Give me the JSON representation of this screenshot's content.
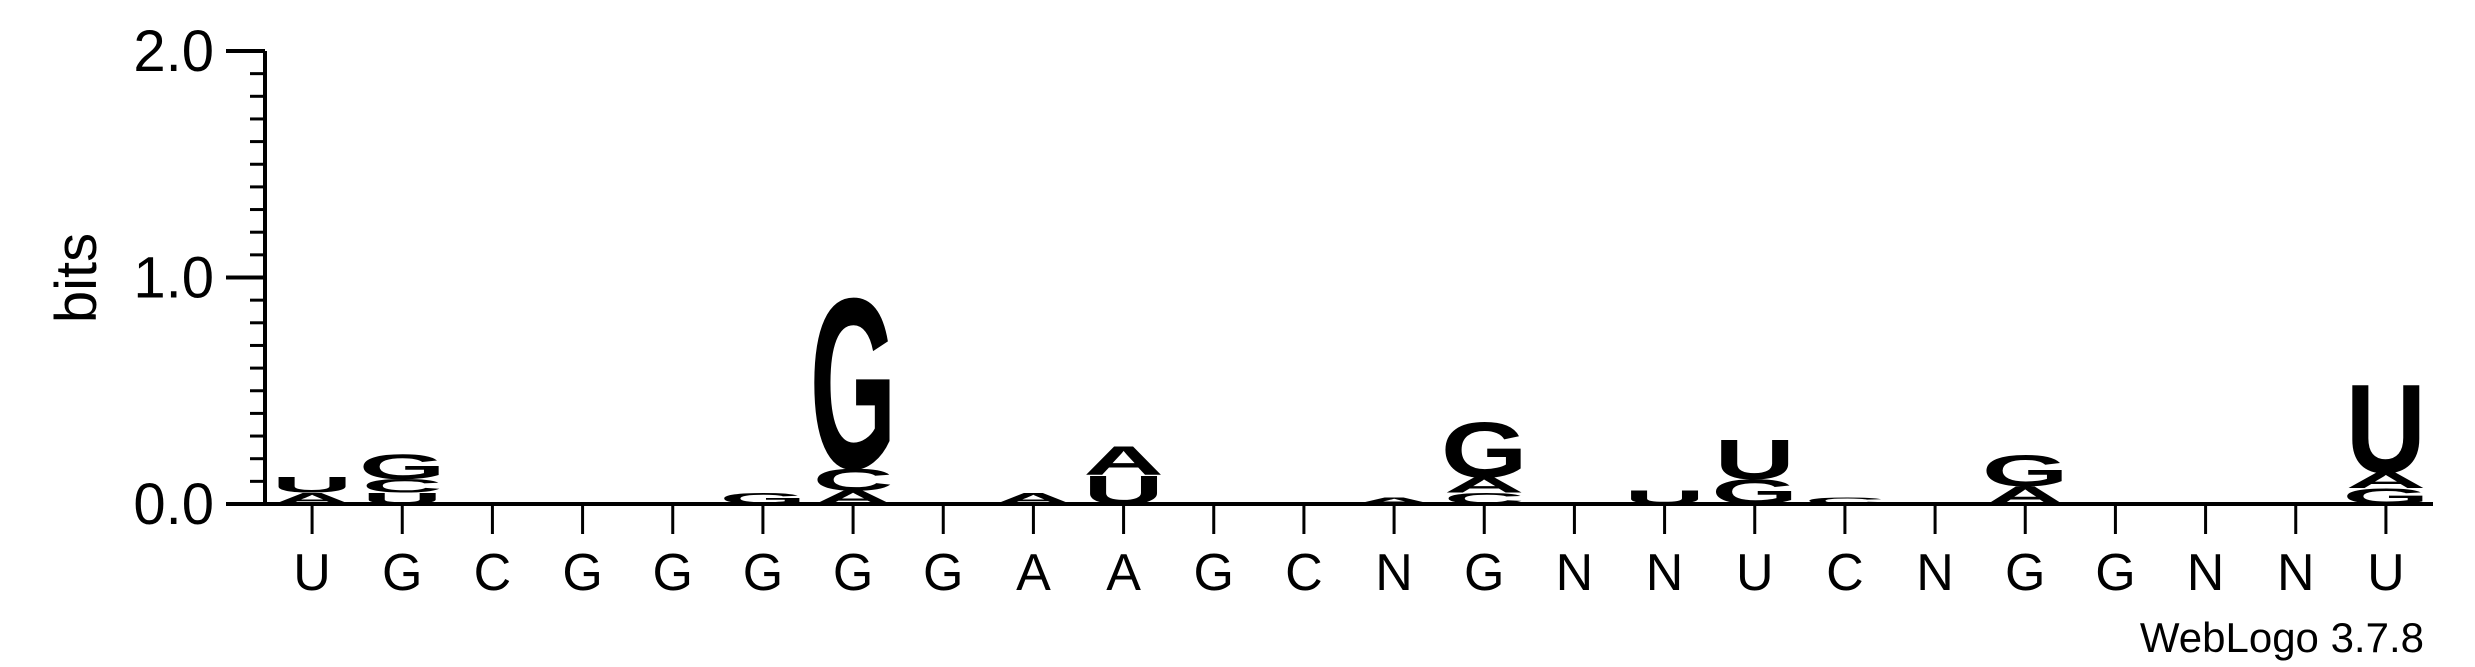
{
  "chart": {
    "ylabel": "bits",
    "credit": "WebLogo 3.7.8"
  },
  "colors": {
    "A": "#f7941d",
    "U": "#f7941d",
    "G": "#0000ff",
    "C": "#0000ff",
    "axis": "#000000"
  },
  "chart_data": {
    "type": "bar",
    "xlabel": "",
    "ylabel": "bits",
    "ylim": [
      0,
      2.0
    ],
    "yticks": [
      "0.0",
      "1.0",
      "2.0"
    ],
    "categories": [
      "U",
      "G",
      "C",
      "G",
      "G",
      "G",
      "G",
      "G",
      "A",
      "A",
      "G",
      "C",
      "N",
      "G",
      "N",
      "N",
      "U",
      "C",
      "N",
      "G",
      "G",
      "N",
      "N",
      "U"
    ],
    "stacks": [
      [
        [
          "A",
          0.05
        ],
        [
          "U",
          0.07
        ]
      ],
      [
        [
          "U",
          0.05
        ],
        [
          "C",
          0.06
        ],
        [
          "G",
          0.11
        ]
      ],
      [],
      [],
      [],
      [
        [
          "G",
          0.05
        ]
      ],
      [
        [
          "A",
          0.06
        ],
        [
          "C",
          0.1
        ],
        [
          "G",
          0.77
        ]
      ],
      [],
      [
        [
          "A",
          0.05
        ]
      ],
      [
        [
          "U",
          0.13
        ],
        [
          "A",
          0.13
        ]
      ],
      [],
      [],
      [
        [
          "A",
          0.03
        ]
      ],
      [
        [
          "C",
          0.05
        ],
        [
          "A",
          0.07
        ],
        [
          "G",
          0.25
        ]
      ],
      [],
      [
        [
          "U",
          0.06
        ]
      ],
      [
        [
          "G",
          0.11
        ],
        [
          "U",
          0.18
        ]
      ],
      [
        [
          "C",
          0.03
        ]
      ],
      [],
      [
        [
          "A",
          0.08
        ],
        [
          "G",
          0.14
        ]
      ],
      [],
      [],
      [],
      [
        [
          "G",
          0.07
        ],
        [
          "A",
          0.07
        ],
        [
          "U",
          0.4
        ]
      ]
    ]
  }
}
